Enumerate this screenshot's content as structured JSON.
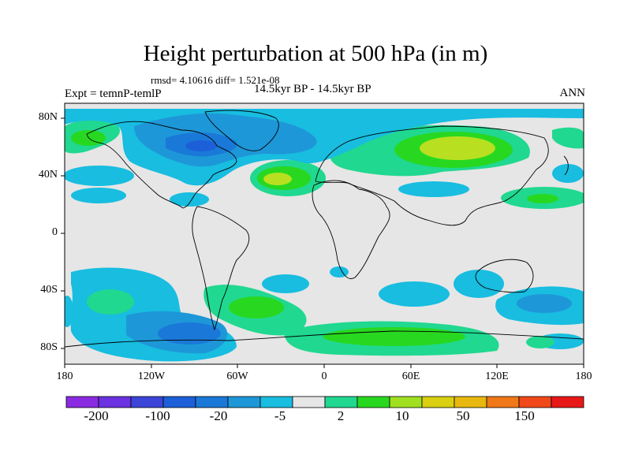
{
  "title": "Height perturbation at 500 hPa (in m)",
  "stats": "rmsd= 4.10616 diff= 1.521e-08",
  "subtitle": "14.5kyr BP - 14.5kyr BP",
  "left_label": "Expt = temnP-temlP",
  "right_label": "ANN",
  "lat_labels": [
    "80N",
    "40N",
    "0",
    "40S",
    "80S"
  ],
  "lon_labels": [
    "180",
    "120W",
    "60W",
    "0",
    "60E",
    "120E",
    "180"
  ],
  "colorbar": {
    "colors": [
      "#8a2be2",
      "#6a32e0",
      "#3c45d8",
      "#1c5fd8",
      "#1a79d8",
      "#1e97d8",
      "#18bde0",
      "#e6e6e6",
      "#20d890",
      "#28d820",
      "#a0e020",
      "#d8d010",
      "#e8b810",
      "#f07818",
      "#f04818",
      "#e81818"
    ],
    "labels": [
      "-200",
      "-100",
      "-20",
      "-5",
      "2",
      "10",
      "50",
      "150"
    ]
  },
  "colors": {
    "ocean_bg": "#e6e6e6",
    "pos_weak": "#20d890",
    "pos_med": "#28d820",
    "pos_strong": "#b8e020",
    "neg_weak": "#18bde0",
    "neg_med": "#1e97d8",
    "neg_strong": "#1a79d8",
    "neg_deep": "#1c5fd8"
  }
}
